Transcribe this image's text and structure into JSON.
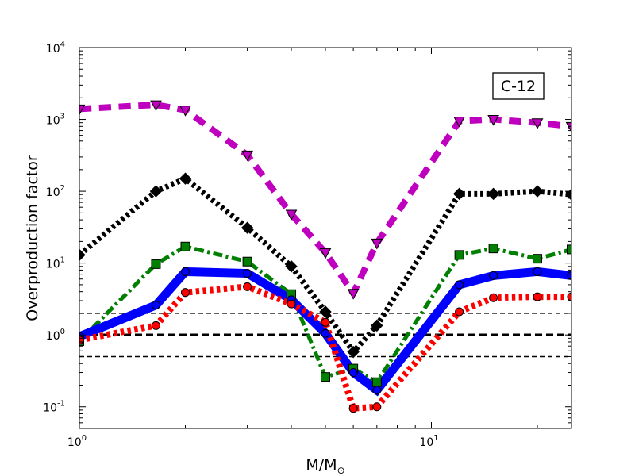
{
  "chart_data": {
    "type": "line",
    "title": "",
    "annotation": "C-12",
    "xlabel": "M/M",
    "xlabel_symbol": "⊙",
    "ylabel": "Overproduction factor",
    "xscale": "log",
    "yscale": "log",
    "xlim": [
      1,
      25
    ],
    "ylim": [
      0.05,
      10000
    ],
    "x_ticks": [
      {
        "value": 1,
        "label": "10",
        "exp": "0"
      },
      {
        "value": 10,
        "label": "10",
        "exp": "1"
      }
    ],
    "y_ticks": [
      {
        "value": 0.1,
        "label": "10",
        "exp": "-1"
      },
      {
        "value": 1,
        "label": "10",
        "exp": "0"
      },
      {
        "value": 10,
        "label": "10",
        "exp": "1"
      },
      {
        "value": 100,
        "label": "10",
        "exp": "2"
      },
      {
        "value": 1000,
        "label": "10",
        "exp": "3"
      },
      {
        "value": 10000,
        "label": "10",
        "exp": "4"
      }
    ],
    "hlines": [
      {
        "y": 2,
        "color": "#000000",
        "style": "dashed",
        "width": 1.5
      },
      {
        "y": 1,
        "color": "#000000",
        "style": "dashed",
        "width": 3.5
      },
      {
        "y": 0.5,
        "color": "#000000",
        "style": "dashed",
        "width": 1.5
      }
    ],
    "series": [
      {
        "color": "#bf00bf",
        "linestyle": "dashed",
        "linewidth": 8,
        "marker": "triangle-down",
        "x": [
          1,
          1.65,
          2,
          3,
          4,
          5,
          6,
          7,
          12,
          15,
          20,
          25
        ],
        "y": [
          1400,
          1600,
          1350,
          320,
          48,
          14,
          3.8,
          19,
          950,
          1000,
          900,
          800
        ]
      },
      {
        "color": "#000000",
        "linestyle": "dotted",
        "linewidth": 7,
        "marker": "diamond",
        "x": [
          1,
          1.65,
          2,
          3,
          4,
          5,
          6,
          7,
          12,
          15,
          20,
          25
        ],
        "y": [
          13,
          100,
          150,
          31,
          9,
          2.1,
          0.58,
          1.35,
          92,
          92,
          100,
          90
        ]
      },
      {
        "color": "#007f00",
        "linestyle": "dashdot",
        "linewidth": 5,
        "marker": "square",
        "x": [
          1,
          1.65,
          2,
          3,
          4,
          5,
          6,
          7,
          12,
          15,
          20,
          25
        ],
        "y": [
          0.82,
          9.7,
          17,
          10.5,
          3.7,
          0.26,
          0.34,
          0.22,
          13,
          16,
          11.5,
          15.5
        ]
      },
      {
        "color": "#0000ff",
        "linestyle": "solid",
        "linewidth": 11,
        "marker": "circle",
        "x": [
          1,
          1.65,
          2,
          3,
          4,
          5,
          6,
          7,
          12,
          15,
          20,
          25
        ],
        "y": [
          0.95,
          2.6,
          7.6,
          7.2,
          3.1,
          1.05,
          0.3,
          0.17,
          5,
          6.7,
          7.6,
          6.7
        ]
      },
      {
        "color": "#ff0000",
        "linestyle": "dotted",
        "linewidth": 8,
        "marker": "circle",
        "x": [
          1,
          1.65,
          2,
          3,
          4,
          5,
          6,
          7,
          12,
          15,
          20,
          25
        ],
        "y": [
          0.85,
          1.35,
          3.9,
          4.7,
          2.7,
          1.5,
          0.095,
          0.1,
          2.1,
          3.3,
          3.4,
          3.4
        ]
      }
    ]
  }
}
